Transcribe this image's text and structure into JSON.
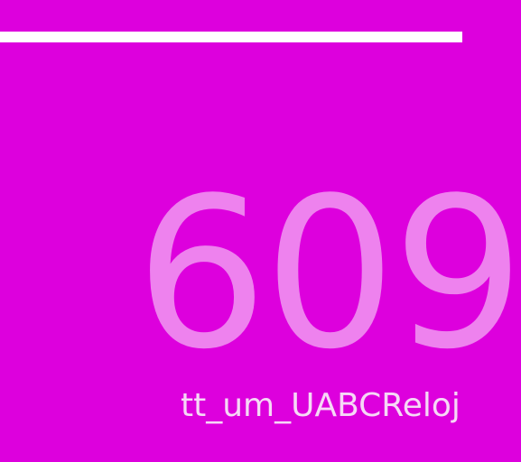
{
  "display": {
    "value": "609",
    "label": "tt_um_UABCReloj"
  },
  "colors": {
    "background": "#dd00dd",
    "divider": "#ffffff",
    "number": "#ee82ee",
    "label": "#f6d8f6"
  }
}
